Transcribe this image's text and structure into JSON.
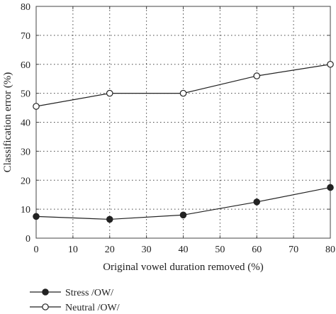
{
  "chart_data": {
    "type": "line",
    "xlabel": "Original vowel duration removed (%)",
    "ylabel": "Classification error (%)",
    "xlim": [
      0,
      80
    ],
    "ylim": [
      0,
      80
    ],
    "xticks": [
      0,
      10,
      20,
      30,
      40,
      50,
      60,
      70,
      80
    ],
    "yticks": [
      0,
      10,
      20,
      30,
      40,
      50,
      60,
      70,
      80
    ],
    "grid": true,
    "legend_position": "below-left",
    "x": [
      0,
      20,
      40,
      60,
      80
    ],
    "series": [
      {
        "name": "Stress /OW/",
        "marker": "filled-circle",
        "color": "#222222",
        "values": [
          7.5,
          6.5,
          8,
          12.5,
          17.5
        ]
      },
      {
        "name": "Neutral /OW/",
        "marker": "open-circle",
        "color": "#222222",
        "values": [
          45.5,
          50,
          50,
          56,
          60
        ]
      }
    ]
  }
}
